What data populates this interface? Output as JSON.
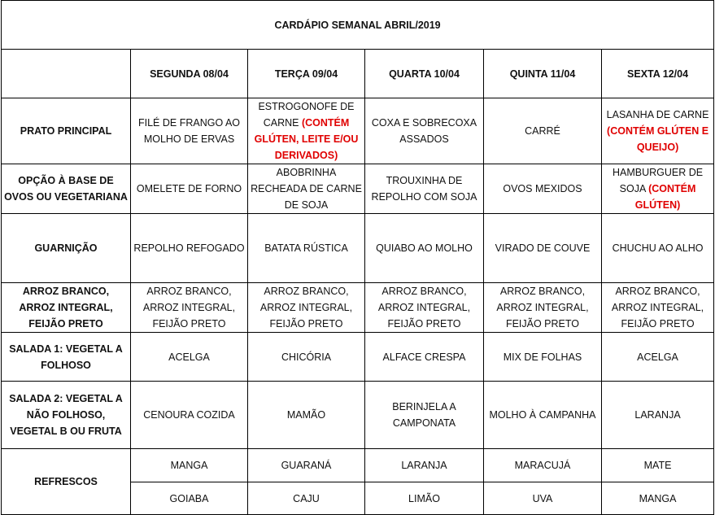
{
  "title": "CARDÁPIO SEMANAL ABRIL/2019",
  "days": [
    "SEGUNDA   08/04",
    "TERÇA 09/04",
    "QUARTA 10/04",
    "QUINTA 11/04",
    "SEXTA 12/04"
  ],
  "rows": [
    {
      "label": "PRATO PRINCIPAL",
      "cells": [
        {
          "text": "FILÉ DE FRANGO AO MOLHO DE ERVAS"
        },
        {
          "text": "ESTROGONOFE DE CARNE ",
          "warning": "(CONTÉM GLÚTEN, LEITE E/OU DERIVADOS)"
        },
        {
          "text": "COXA E SOBRECOXA ASSADOS"
        },
        {
          "text": "CARRÉ"
        },
        {
          "text": "LASANHA DE CARNE ",
          "warning": "(CONTÉM GLÚTEN E QUEIJO)"
        }
      ]
    },
    {
      "label": "OPÇÃO À BASE DE OVOS OU VEGETARIANA",
      "cells": [
        {
          "text": "OMELETE DE FORNO"
        },
        {
          "text": "ABOBRINHA RECHEADA DE CARNE DE SOJA"
        },
        {
          "text": "TROUXINHA DE REPOLHO COM SOJA"
        },
        {
          "text": "OVOS MEXIDOS"
        },
        {
          "text": "HAMBURGUER DE SOJA ",
          "warning": "(CONTÉM GLÚTEN)"
        }
      ]
    },
    {
      "label": "GUARNIÇÃO",
      "cells": [
        {
          "text": "REPOLHO REFOGADO"
        },
        {
          "text": "BATATA RÚSTICA"
        },
        {
          "text": "QUIABO AO MOLHO"
        },
        {
          "text": "VIRADO DE COUVE"
        },
        {
          "text": "CHUCHU AO ALHO"
        }
      ]
    },
    {
      "label": "ARROZ BRANCO, ARROZ INTEGRAL, FEIJÃO PRETO",
      "cells": [
        {
          "text": "ARROZ BRANCO, ARROZ INTEGRAL, FEIJÃO PRETO"
        },
        {
          "text": "ARROZ BRANCO, ARROZ INTEGRAL, FEIJÃO PRETO"
        },
        {
          "text": "ARROZ BRANCO, ARROZ INTEGRAL, FEIJÃO PRETO"
        },
        {
          "text": "ARROZ BRANCO, ARROZ INTEGRAL, FEIJÃO PRETO"
        },
        {
          "text": "ARROZ BRANCO, ARROZ INTEGRAL, FEIJÃO PRETO"
        }
      ]
    },
    {
      "label": "SALADA 1: VEGETAL A FOLHOSO",
      "cells": [
        {
          "text": "ACELGA"
        },
        {
          "text": "CHICÓRIA"
        },
        {
          "text": "ALFACE CRESPA"
        },
        {
          "text": "MIX DE FOLHAS"
        },
        {
          "text": "ACELGA"
        }
      ]
    },
    {
      "label": "SALADA 2: VEGETAL A NÃO FOLHOSO, VEGETAL B OU FRUTA",
      "cells": [
        {
          "text": "CENOURA COZIDA"
        },
        {
          "text": "MAMÃO"
        },
        {
          "text": "BERINJELA A CAMPONATA"
        },
        {
          "text": "MOLHO À CAMPANHA"
        },
        {
          "text": "LARANJA"
        }
      ]
    }
  ],
  "refrescos": {
    "label": "REFRESCOS",
    "rows": [
      [
        "MANGA",
        "GUARANÁ",
        "LARANJA",
        "MARACUJÁ",
        "MATE"
      ],
      [
        "GOIABA",
        "CAJU",
        "LIMÃO",
        "UVA",
        "MANGA"
      ]
    ]
  },
  "colors": {
    "warning": "#e00000",
    "border": "#000000"
  }
}
